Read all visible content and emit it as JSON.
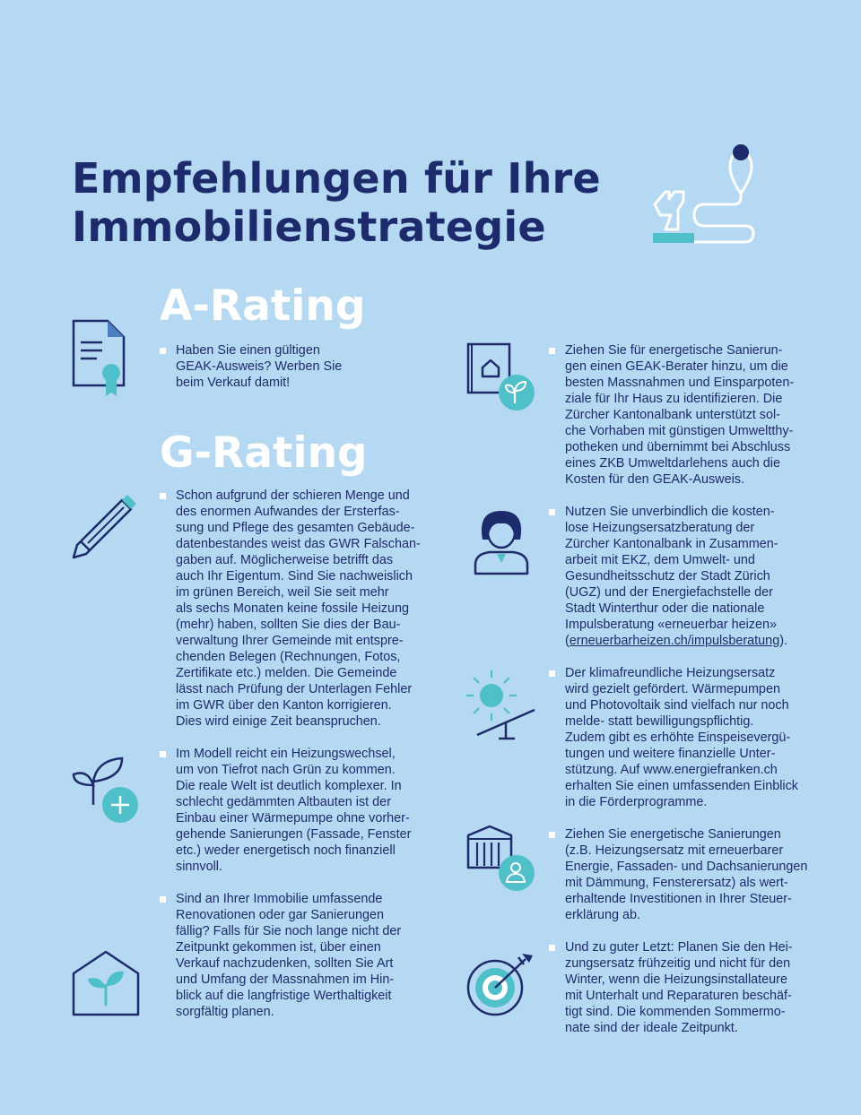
{
  "page": {
    "title_line1": "Empfehlungen für Ihre",
    "title_line2": "Immobilienstrategie"
  },
  "sections": {
    "a_rating": "A-Rating",
    "g_rating": "G-Rating"
  },
  "left_items": [
    {
      "icon": "certificate-document-icon",
      "lines": [
        "Haben Sie einen gültigen",
        "GEAK-Ausweis? Werben Sie",
        "beim Verkauf damit!"
      ]
    },
    {
      "icon": "pencil-icon",
      "lines": [
        "Schon aufgrund der schieren Menge und",
        "des enormen Aufwandes der Ersterfas-",
        "sung und Pflege des gesamten Gebäude-",
        "datenbestandes weist das GWR Falschan-",
        "gaben auf. Möglicherweise betrifft das",
        "auch Ihr Eigentum. Sind Sie nachweislich",
        "im grünen Bereich, weil Sie seit mehr",
        "als sechs Monaten keine fossile Heizung",
        "(mehr) haben, sollten Sie dies der Bau-",
        "verwaltung Ihrer Gemeinde mit entspre-",
        "chenden Belegen (Rechnungen, Fotos,",
        "Zertifikate etc.) melden. Die Gemeinde",
        "lässt nach Prüfung der Unterlagen Fehler",
        "im GWR über den Kanton korrigieren.",
        "Dies wird einige Zeit beanspruchen."
      ]
    },
    {
      "icon": "plant-plus-icon",
      "lines": [
        "Im Modell reicht ein Heizungswechsel,",
        "um von Tiefrot nach Grün zu kommen.",
        "Die reale Welt ist deutlich komplexer. In",
        "schlecht gedämmten Altbauten ist der",
        "Einbau einer Wärmepumpe ohne vorher-",
        "gehende Sanierungen (Fassade, Fenster",
        "etc.) weder energetisch noch finanziell",
        "sinnvoll."
      ]
    },
    {
      "icon": "house-plant-icon",
      "lines": [
        "Sind an Ihrer Immobilie umfassende",
        "Renovationen oder gar Sanierungen",
        "fällig? Falls für Sie noch lange nicht der",
        "Zeitpunkt gekommen ist, über einen",
        "Verkauf nachzudenken, sollten Sie Art",
        "und Umfang der Massnahmen im Hin-",
        "blick auf die langfristige Werthaltigkeit",
        "sorgfältig planen."
      ]
    }
  ],
  "right_items": [
    {
      "icon": "house-document-leaf-icon",
      "lines": [
        "Ziehen Sie für energetische Sanierun-",
        "gen einen GEAK-Berater hinzu, um die",
        "besten Massnahmen und Einsparpoten-",
        "ziale für Ihr Haus zu identifizieren. Die",
        "Zürcher Kantonalbank unterstützt sol-",
        "che Vorhaben mit günstigen Umweltthy-",
        "potheken und übernimmt bei Abschluss",
        "eines ZKB Umweltdarlehens auch die",
        "Kosten für den GEAK-Ausweis."
      ]
    },
    {
      "icon": "advisor-person-icon",
      "lines": [
        "Nutzen Sie unverbindlich die kosten-",
        "lose Heizungsersatzberatung der",
        "Zürcher Kantonalbank in Zusammen-",
        "arbeit mit EKZ, dem Umwelt- und",
        "Gesundheitsschutz der Stadt Zürich",
        "(UGZ) und der Energiefachstelle der",
        "Stadt Winterthur oder die nationale",
        "Impulsberatung «erneuerbar heizen»"
      ],
      "link_prefix": "(",
      "link_text": "erneuerbarheizen.ch/impulsberatung",
      "link_suffix": ")."
    },
    {
      "icon": "sun-seesaw-icon",
      "lines": [
        "Der klimafreundliche Heizungsersatz",
        "wird gezielt gefördert. Wärmepumpen",
        "und Photovoltaik sind vielfach nur noch",
        "melde- statt bewilligungspflichtig.",
        "Zudem gibt es erhöhte Einspeisevergü-",
        "tungen und weitere finanzielle Unter-",
        "stützung. Auf www.energiefranken.ch",
        "erhalten Sie einen umfassenden Einblick",
        "in die Förderprogramme."
      ]
    },
    {
      "icon": "building-person-icon",
      "lines": [
        "Ziehen Sie energetische Sanierungen",
        "(z.B. Heizungsersatz mit erneuerbarer",
        "Energie, Fassaden- und Dachsanierungen",
        "mit Dämmung, Fensterersatz) als wert-",
        "erhaltende Investitionen in Ihrer Steuer-",
        "erklärung ab."
      ]
    },
    {
      "icon": "target-arrow-icon",
      "lines": [
        "Und zu guter Letzt: Planen Sie den Hei-",
        "zungsersatz frühzeitig und nicht für den",
        "Winter, wenn die Heizungsinstallateure",
        "mit Unterhalt und Reparaturen beschäf-",
        "tigt sind. Die kommenden Sommermo-",
        "nate sind der ideale Zeitpunkt."
      ]
    }
  ],
  "colors": {
    "background": "#b6d9f3",
    "navy": "#1d2a6b",
    "teal": "#4fbfca",
    "white": "#ffffff"
  }
}
